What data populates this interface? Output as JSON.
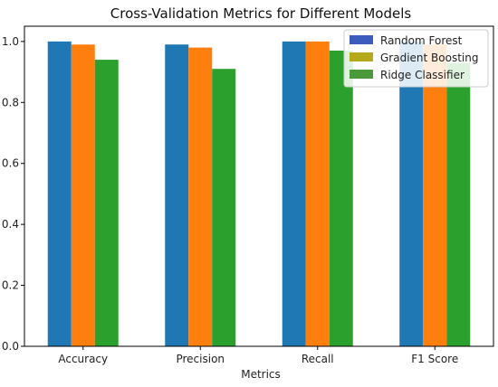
{
  "chart_data": {
    "type": "bar",
    "title": "Cross-Validation Metrics for Different Models",
    "xlabel": "Metrics",
    "ylabel": "",
    "categories": [
      "Accuracy",
      "Precision",
      "Recall",
      "F1 Score"
    ],
    "series": [
      {
        "name": "Random Forest",
        "values": [
          1.0,
          0.99,
          1.0,
          1.0
        ],
        "color": "#1f77b4"
      },
      {
        "name": "Gradient Boosting",
        "values": [
          0.99,
          0.98,
          1.0,
          0.99
        ],
        "color": "#ff7f0e"
      },
      {
        "name": "Ridge Classifier",
        "values": [
          0.94,
          0.91,
          0.97,
          0.93
        ],
        "color": "#2ca02c"
      }
    ],
    "legend_colors": [
      "#3b5bbd",
      "#b5a81a",
      "#4a9a3c"
    ],
    "ylim": [
      0,
      1.05
    ],
    "yticks": [
      0.0,
      0.2,
      0.4,
      0.6,
      0.8,
      1.0
    ],
    "ytick_labels": [
      "0.0",
      "0.2",
      "0.4",
      "0.6",
      "0.8",
      "1.0"
    ],
    "grid": false,
    "legend_position": "top-right"
  }
}
